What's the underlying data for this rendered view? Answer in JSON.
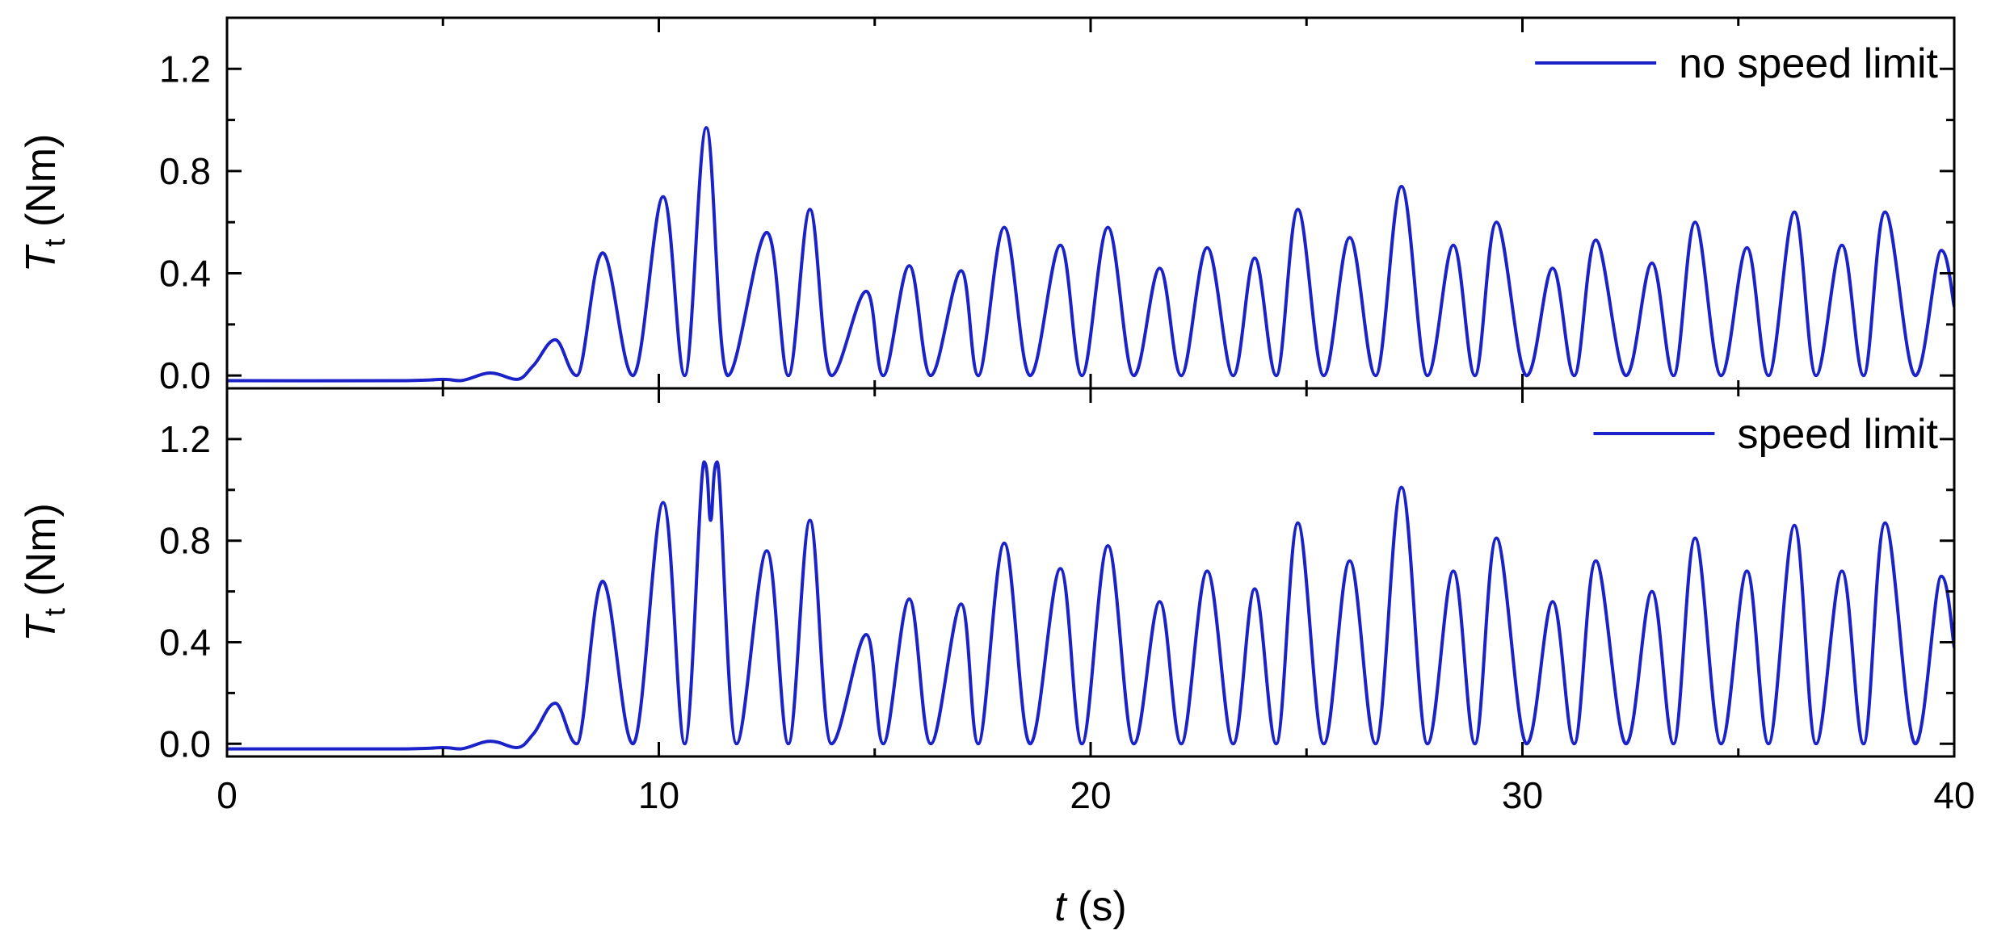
{
  "chart_data": [
    {
      "type": "line",
      "xlabel_var": "t",
      "xlabel_unit": " (s)",
      "ylabel_var": "T",
      "ylabel_sub": "t",
      "ylabel_unit": " (Nm)",
      "xlim": [
        0,
        40
      ],
      "ylim": [
        -0.05,
        1.4
      ],
      "xticks": [
        0,
        10,
        20,
        30,
        40
      ],
      "yticks": [
        0.0,
        0.4,
        0.8,
        1.2
      ],
      "xtick_labels": [
        "0",
        "10",
        "20",
        "30",
        "40"
      ],
      "ytick_labels": [
        "0.0",
        "0.4",
        "0.8",
        "1.2"
      ],
      "grid": false,
      "legend_position": "top-right",
      "series": [
        {
          "name": "no speed limit",
          "color": "#1a22c8",
          "x": [
            0,
            4.0,
            5.0,
            5.4,
            6.1,
            6.7,
            7.1,
            7.6,
            8.1,
            8.7,
            9.4,
            10.1,
            10.6,
            11.1,
            11.6,
            12.5,
            13.0,
            13.5,
            14.0,
            14.8,
            15.2,
            15.8,
            16.3,
            17.0,
            17.4,
            18.0,
            18.6,
            19.3,
            19.8,
            20.4,
            21.0,
            21.6,
            22.1,
            22.7,
            23.3,
            23.8,
            24.3,
            24.8,
            25.4,
            26.0,
            26.6,
            27.2,
            27.8,
            28.4,
            28.9,
            29.4,
            30.1,
            30.7,
            31.2,
            31.7,
            32.4,
            33.0,
            33.5,
            34.0,
            34.6,
            35.2,
            35.7,
            36.3,
            36.8,
            37.4,
            37.9,
            38.4,
            39.1,
            39.7,
            40.0
          ],
          "y": [
            -0.02,
            -0.02,
            -0.015,
            -0.02,
            0.01,
            -0.015,
            0.04,
            0.14,
            0.0,
            0.48,
            0.0,
            0.7,
            0.0,
            0.97,
            0.0,
            0.56,
            0.0,
            0.65,
            0.0,
            0.33,
            0.0,
            0.43,
            0.0,
            0.41,
            0.0,
            0.58,
            0.0,
            0.51,
            0.0,
            0.58,
            0.0,
            0.42,
            0.0,
            0.5,
            0.0,
            0.46,
            0.0,
            0.65,
            0.0,
            0.54,
            0.0,
            0.74,
            0.0,
            0.51,
            0.0,
            0.6,
            0.0,
            0.42,
            0.0,
            0.53,
            0.0,
            0.44,
            0.0,
            0.6,
            0.0,
            0.5,
            0.0,
            0.64,
            0.0,
            0.51,
            0.0,
            0.64,
            0.0,
            0.49,
            0.27
          ]
        }
      ]
    },
    {
      "type": "line",
      "xlabel_var": "t",
      "xlabel_unit": " (s)",
      "ylabel_var": "T",
      "ylabel_sub": "t",
      "ylabel_unit": " (Nm)",
      "xlim": [
        0,
        40
      ],
      "ylim": [
        -0.05,
        1.4
      ],
      "xticks": [
        0,
        10,
        20,
        30,
        40
      ],
      "yticks": [
        0.0,
        0.4,
        0.8,
        1.2
      ],
      "xtick_labels": [
        "0",
        "10",
        "20",
        "30",
        "40"
      ],
      "ytick_labels": [
        "0.0",
        "0.4",
        "0.8",
        "1.2"
      ],
      "grid": false,
      "legend_position": "top-right",
      "series": [
        {
          "name": "speed limit",
          "color": "#1a22c8",
          "x": [
            0,
            4.0,
            5.0,
            5.4,
            6.1,
            6.7,
            7.1,
            7.6,
            8.1,
            8.7,
            9.4,
            10.1,
            10.6,
            11.05,
            11.2,
            11.35,
            11.8,
            12.5,
            13.0,
            13.5,
            14.0,
            14.8,
            15.2,
            15.8,
            16.3,
            17.0,
            17.4,
            18.0,
            18.6,
            19.3,
            19.8,
            20.4,
            21.0,
            21.6,
            22.1,
            22.7,
            23.3,
            23.8,
            24.3,
            24.8,
            25.4,
            26.0,
            26.6,
            27.2,
            27.8,
            28.4,
            28.9,
            29.4,
            30.1,
            30.7,
            31.2,
            31.7,
            32.4,
            33.0,
            33.5,
            34.0,
            34.6,
            35.2,
            35.7,
            36.3,
            36.8,
            37.4,
            37.9,
            38.4,
            39.1,
            39.7,
            40.0
          ],
          "y": [
            -0.02,
            -0.02,
            -0.015,
            -0.02,
            0.01,
            -0.015,
            0.04,
            0.16,
            0.0,
            0.64,
            0.0,
            0.95,
            0.0,
            1.11,
            0.88,
            1.11,
            0.0,
            0.76,
            0.0,
            0.88,
            0.0,
            0.43,
            0.0,
            0.57,
            0.0,
            0.55,
            0.0,
            0.79,
            0.0,
            0.69,
            0.0,
            0.78,
            0.0,
            0.56,
            0.0,
            0.68,
            0.0,
            0.61,
            0.0,
            0.87,
            0.0,
            0.72,
            0.0,
            1.01,
            0.0,
            0.68,
            0.0,
            0.81,
            0.0,
            0.56,
            0.0,
            0.72,
            0.0,
            0.6,
            0.0,
            0.81,
            0.0,
            0.68,
            0.0,
            0.86,
            0.0,
            0.68,
            0.0,
            0.87,
            0.0,
            0.66,
            0.38
          ]
        }
      ]
    }
  ]
}
